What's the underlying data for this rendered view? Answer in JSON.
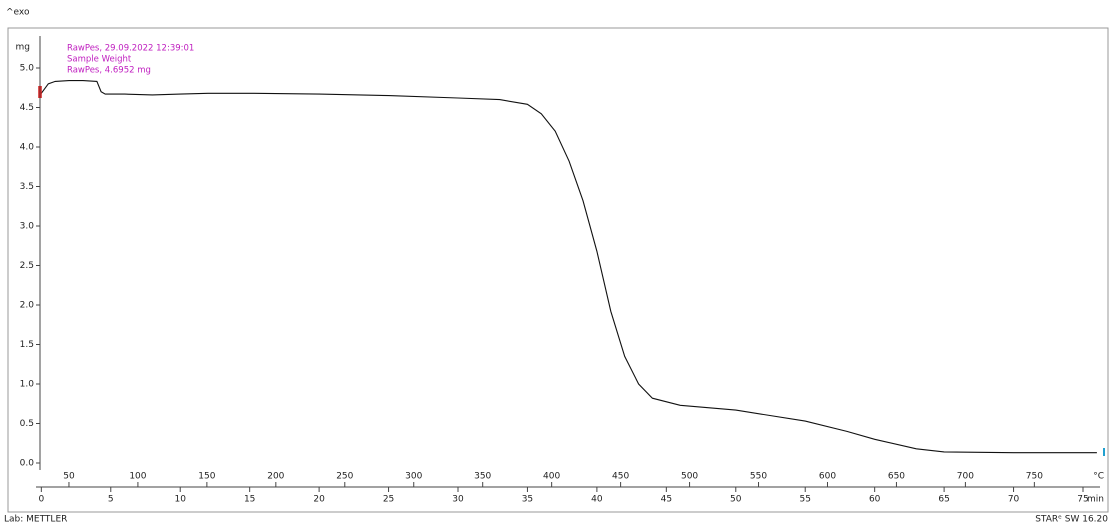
{
  "chart_data": {
    "type": "line",
    "corner_label": "^exo",
    "y_unit": "mg",
    "x_unit": "min",
    "x2_unit": "°C",
    "legend_lines": [
      "RawPes, 29.09.2022 12:39:01",
      "Sample Weight",
      "RawPes, 4.6952 mg"
    ],
    "footer_left": "Lab: METTLER",
    "footer_right": "STARᵉ SW 16.20",
    "xlim": [
      -2.4,
      76.8
    ],
    "xticks": [
      0,
      5,
      10,
      15,
      20,
      25,
      30,
      35,
      40,
      45,
      50,
      55,
      60,
      65,
      70,
      75
    ],
    "x2lim": [
      5.8,
      803.4
    ],
    "x2ticks": [
      50,
      100,
      150,
      200,
      250,
      300,
      350,
      400,
      450,
      500,
      550,
      600,
      650,
      700,
      750
    ],
    "ylim": [
      -0.5,
      5.5
    ],
    "yticks": [
      {
        "value": 0,
        "label": "0.0"
      },
      {
        "value": 0.5,
        "label": "0.5"
      },
      {
        "value": 1,
        "label": "1.0"
      },
      {
        "value": 1.5,
        "label": "1.5"
      },
      {
        "value": 2,
        "label": "2.0"
      },
      {
        "value": 2.5,
        "label": "2.5"
      },
      {
        "value": 3,
        "label": "3.0"
      },
      {
        "value": 3.5,
        "label": "3.5"
      },
      {
        "value": 4,
        "label": "4.0"
      },
      {
        "value": 4.5,
        "label": "4.5"
      },
      {
        "value": 5,
        "label": "5.0"
      }
    ],
    "grid": false,
    "series": [
      {
        "color": "#111111",
        "x": [
          0,
          0.5,
          1,
          2,
          3,
          4,
          4.3,
          4.6,
          6,
          8,
          10,
          12,
          15,
          20,
          25,
          30,
          33,
          35,
          36,
          37,
          38,
          39,
          40,
          41,
          42,
          43,
          44,
          46,
          50,
          55,
          58,
          60,
          63,
          65,
          70,
          76
        ],
        "values": [
          4.68,
          4.8,
          4.83,
          4.84,
          4.84,
          4.83,
          4.7,
          4.67,
          4.67,
          4.66,
          4.67,
          4.68,
          4.68,
          4.67,
          4.65,
          4.62,
          4.6,
          4.54,
          4.42,
          4.2,
          3.82,
          3.32,
          2.68,
          1.92,
          1.35,
          1.0,
          0.82,
          0.73,
          0.67,
          0.53,
          0.4,
          0.3,
          0.18,
          0.14,
          0.13,
          0.13
        ]
      }
    ]
  }
}
